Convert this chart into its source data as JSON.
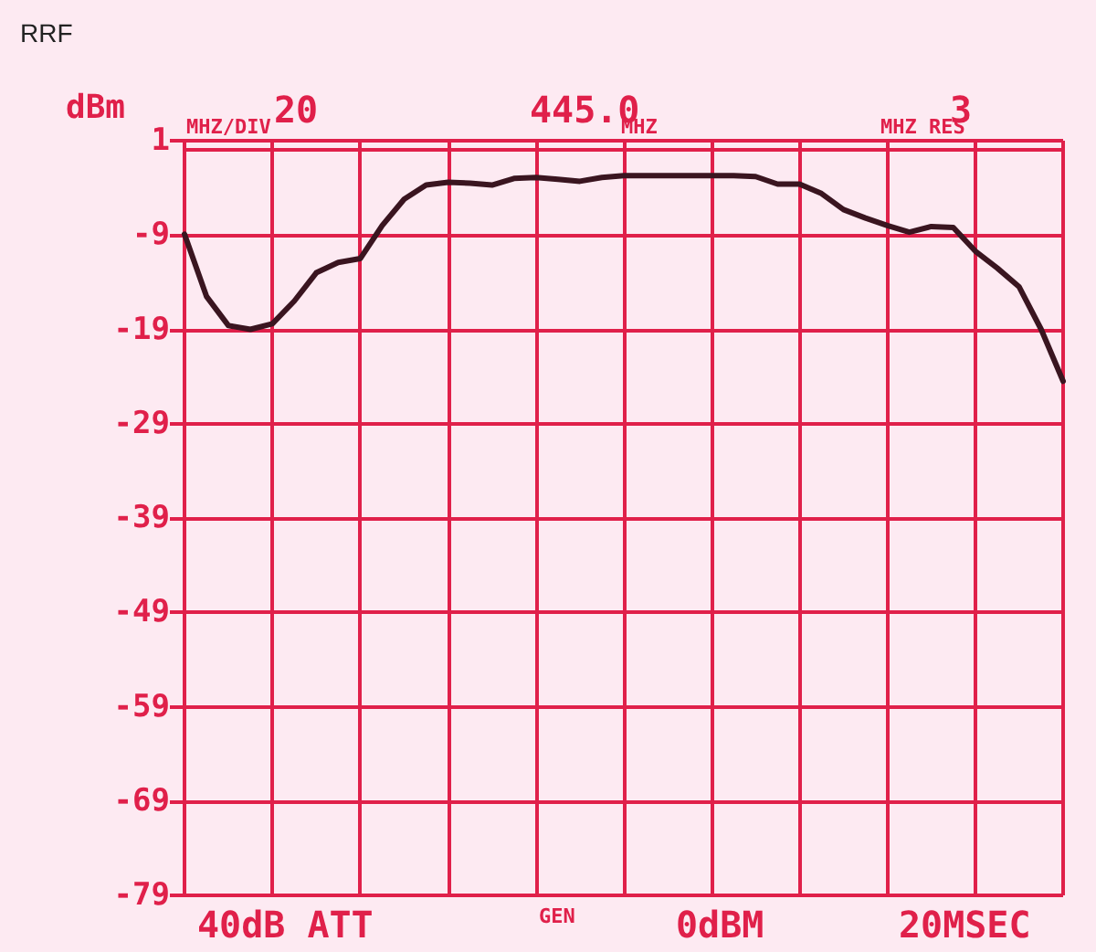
{
  "chart_data": {
    "type": "line",
    "title": "RRF",
    "ylabel": "dBm",
    "annotations": [
      "20",
      "MHZ/DIV",
      "445.0",
      "MHZ",
      "3",
      "MHZ RES",
      "40dB ATT",
      "GEN",
      "0dBM",
      "20MSEC"
    ],
    "categories": [
      null,
      null,
      null,
      null,
      null,
      null,
      null,
      null,
      null,
      null,
      null,
      null,
      null,
      null,
      null,
      null,
      null,
      null,
      null,
      null,
      null,
      null,
      null,
      null,
      null,
      null,
      null,
      null,
      null,
      null,
      null,
      null,
      null,
      null,
      null,
      null,
      null,
      null,
      null,
      null,
      null
    ],
    "series": [
      {
        "color": "#3a1520",
        "values": [
          -8.9,
          -15.5,
          -18.6,
          -19,
          -18.4,
          -16,
          -13,
          -11.9,
          -11.5,
          -8,
          -5.2,
          -3.7,
          -3.4,
          -3.5,
          -3.7,
          -3,
          -2.9,
          -3.1,
          -3.3,
          -2.9,
          -2.7,
          -2.7,
          -2.7,
          -2.7,
          -2.7,
          -2.7,
          -2.8,
          -3.6,
          -3.6,
          -4.6,
          -6.3,
          -7.2,
          -8,
          -8.7,
          -8.1,
          -8.2,
          -10.7,
          -12.5,
          -14.5,
          -19,
          -24.5
        ]
      }
    ],
    "ylim": [
      -79,
      1
    ],
    "yticks": [
      1,
      -9,
      -19,
      -29,
      -39,
      -49,
      -59,
      -69,
      -79
    ],
    "grid": true,
    "tick_labels": "y",
    "marker": "none",
    "line_style": "solid"
  }
}
